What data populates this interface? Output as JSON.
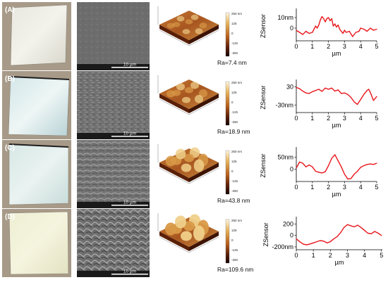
{
  "figure": {
    "panels": [
      {
        "letter": "(A)",
        "sem_scale_label": "10 µm",
        "afm_colorbar": {
          "top": "250 nm",
          "ticks": [
            "125",
            "0",
            "-125",
            "-250"
          ]
        },
        "roughness": "Ra=7.4 nm",
        "profile": {
          "ylabel": "ZSensor",
          "ytick_labels": [
            "10nm",
            "0"
          ],
          "yticks": [
            10,
            0
          ],
          "ylim": [
            -12,
            16
          ],
          "xlabel": "µm",
          "xtick_labels": [
            "0",
            "1",
            "2",
            "3",
            "4",
            "5"
          ],
          "xticks": [
            0,
            1,
            2,
            3,
            4,
            5
          ],
          "xlim": [
            0,
            5
          ]
        }
      },
      {
        "letter": "(B)",
        "sem_scale_label": "10 µm",
        "afm_colorbar": {
          "top": "250 nm",
          "ticks": [
            "125",
            "0",
            "-125",
            "-250"
          ]
        },
        "roughness": "Ra=18.9 nm",
        "profile": {
          "ylabel": "ZSensor",
          "ytick_labels": [
            "30",
            "-30nm"
          ],
          "yticks": [
            30,
            -30
          ],
          "ylim": [
            -55,
            45
          ],
          "xlabel": "µm",
          "xtick_labels": [
            "0",
            "1",
            "2",
            "3",
            "4",
            "5"
          ],
          "xticks": [
            0,
            1,
            2,
            3,
            4,
            5
          ],
          "xlim": [
            0,
            5
          ]
        }
      },
      {
        "letter": "(C)",
        "sem_scale_label": "10 µm",
        "afm_colorbar": {
          "top": "250 nm",
          "ticks": [
            "125",
            "0",
            "-125",
            "-250"
          ]
        },
        "roughness": "Ra=43.8 nm",
        "profile": {
          "ylabel": "ZSensor",
          "ytick_labels": [
            "50nm",
            "0"
          ],
          "yticks": [
            50,
            0
          ],
          "ylim": [
            -50,
            80
          ],
          "xlabel": "µm",
          "xtick_labels": [
            "0",
            "1",
            "2",
            "3",
            "4",
            "5"
          ],
          "xticks": [
            0,
            1,
            2,
            3,
            4,
            5
          ],
          "xlim": [
            0,
            5
          ]
        }
      },
      {
        "letter": "(D)",
        "sem_scale_label": "10 µm",
        "afm_colorbar": {
          "top": "250 nm",
          "ticks": [
            "125",
            "0",
            "-125",
            "-250"
          ]
        },
        "roughness": "Ra=109.6 nm",
        "profile": {
          "ylabel": "ZSensor",
          "ytick_labels": [
            "200",
            "0",
            "-200nm"
          ],
          "yticks": [
            200,
            0,
            -200
          ],
          "ylim": [
            -250,
            280
          ],
          "xlabel": "µm",
          "xtick_labels": [
            "0",
            "1",
            "2",
            "3",
            "4",
            "5"
          ],
          "xticks": [
            0,
            1,
            2,
            3,
            4,
            5
          ],
          "xlim": [
            0,
            5.05
          ]
        }
      }
    ]
  },
  "chart_data": [
    {
      "type": "line",
      "panel": "(A)",
      "ylabel": "ZSensor",
      "xlabel": "µm",
      "xlim": [
        0,
        5
      ],
      "ylim": [
        -12,
        16
      ],
      "color": "#e8161b",
      "series": [
        {
          "x": [
            0,
            0.2,
            0.4,
            0.6,
            0.8,
            1.0,
            1.1,
            1.2,
            1.3,
            1.4,
            1.5,
            1.6,
            1.7,
            1.8,
            1.9,
            2.0,
            2.1,
            2.2,
            2.3,
            2.4,
            2.5,
            2.6,
            2.7,
            2.8,
            2.9,
            3.0,
            3.1,
            3.3,
            3.5,
            3.7,
            3.9,
            4.0,
            4.2,
            4.4,
            4.6,
            4.8,
            5.0
          ],
          "y": [
            -2,
            -4,
            -6,
            -3,
            -5,
            -4,
            -1,
            2,
            0,
            3,
            8,
            11,
            9,
            6,
            9,
            10,
            7,
            9,
            2,
            4,
            1,
            3,
            -1,
            -3,
            -5,
            -2,
            -4,
            -3,
            -8,
            -4,
            -3,
            0,
            -1,
            -3,
            0,
            -2,
            -1
          ]
        }
      ]
    },
    {
      "type": "line",
      "panel": "(B)",
      "ylabel": "ZSensor",
      "xlabel": "µm",
      "xlim": [
        0,
        5
      ],
      "ylim": [
        -55,
        45
      ],
      "color": "#e8161b",
      "series": [
        {
          "x": [
            0,
            0.2,
            0.4,
            0.6,
            0.8,
            1.0,
            1.2,
            1.4,
            1.6,
            1.8,
            2.0,
            2.2,
            2.4,
            2.6,
            2.8,
            3.0,
            3.2,
            3.4,
            3.6,
            3.8,
            4.0,
            4.2,
            4.4,
            4.5,
            4.6,
            4.8,
            5.0
          ],
          "y": [
            28,
            24,
            16,
            10,
            8,
            14,
            18,
            22,
            15,
            26,
            22,
            26,
            16,
            20,
            8,
            10,
            5,
            -5,
            -20,
            -28,
            -12,
            5,
            18,
            22,
            12,
            -15,
            -2
          ]
        }
      ]
    },
    {
      "type": "line",
      "panel": "(C)",
      "ylabel": "ZSensor",
      "xlabel": "µm",
      "xlim": [
        0,
        5
      ],
      "ylim": [
        -50,
        80
      ],
      "color": "#e8161b",
      "series": [
        {
          "x": [
            0,
            0.2,
            0.4,
            0.6,
            0.8,
            1.0,
            1.2,
            1.4,
            1.6,
            1.8,
            2.0,
            2.2,
            2.4,
            2.6,
            2.8,
            3.0,
            3.2,
            3.4,
            3.6,
            3.8,
            4.0,
            4.2,
            4.4,
            4.6,
            4.8,
            5.0
          ],
          "y": [
            5,
            30,
            25,
            10,
            18,
            10,
            -8,
            -12,
            -15,
            -10,
            15,
            45,
            60,
            35,
            10,
            -20,
            -40,
            -38,
            -20,
            -8,
            8,
            15,
            20,
            22,
            20,
            25
          ]
        }
      ]
    },
    {
      "type": "line",
      "panel": "(D)",
      "ylabel": "ZSensor",
      "xlabel": "µm",
      "xlim": [
        0,
        5.05
      ],
      "ylim": [
        -250,
        280
      ],
      "color": "#e8161b",
      "series": [
        {
          "x": [
            0,
            0.2,
            0.4,
            0.6,
            0.8,
            1.0,
            1.2,
            1.4,
            1.6,
            1.8,
            2.0,
            2.2,
            2.4,
            2.6,
            2.8,
            3.0,
            3.2,
            3.4,
            3.6,
            3.8,
            4.0,
            4.2,
            4.4,
            4.6,
            4.8,
            5.0
          ],
          "y": [
            -60,
            -110,
            -150,
            -165,
            -150,
            -130,
            -110,
            -90,
            -100,
            -130,
            -110,
            -60,
            -20,
            50,
            140,
            190,
            170,
            150,
            180,
            140,
            90,
            40,
            30,
            70,
            40,
            0
          ]
        }
      ]
    }
  ]
}
